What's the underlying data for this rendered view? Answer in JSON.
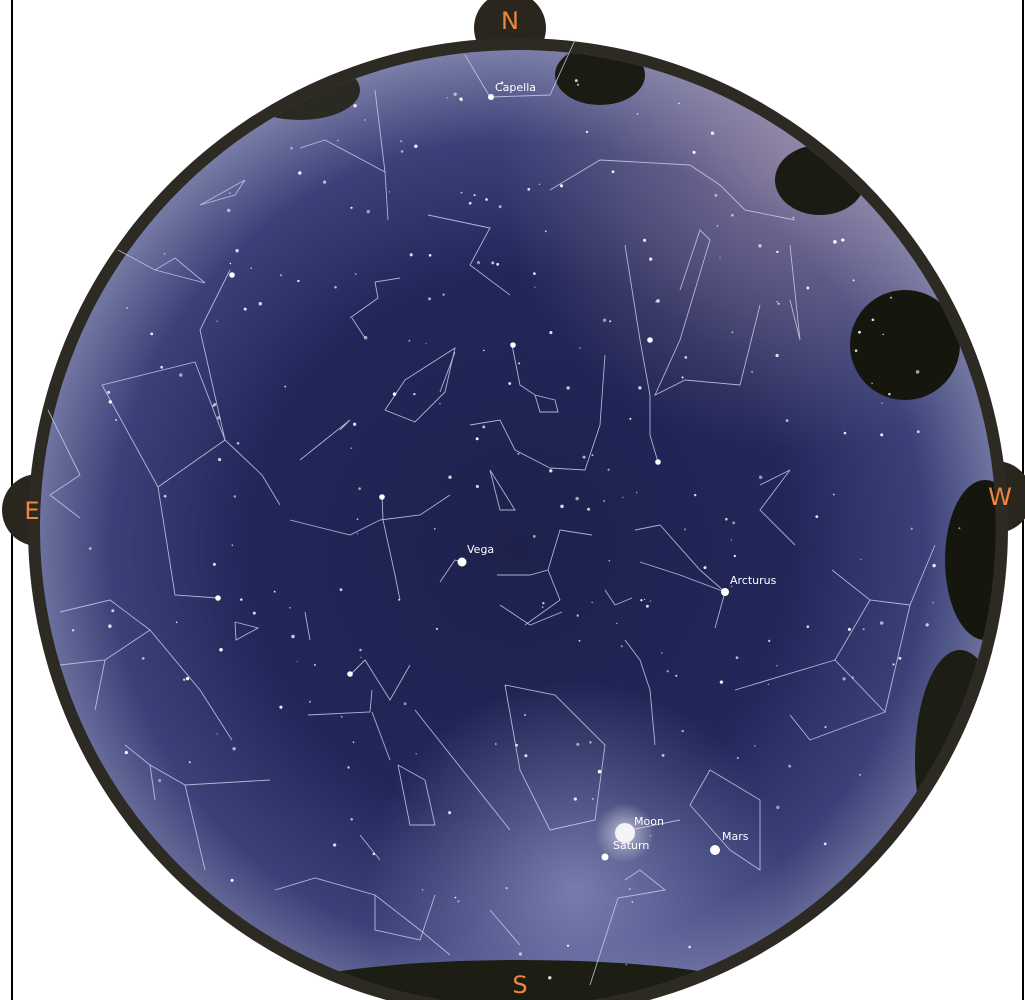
{
  "compass": {
    "north": "N",
    "east": "E",
    "west": "W",
    "south": "S"
  },
  "objects": [
    {
      "label": "Capella"
    },
    {
      "label": "Vega"
    },
    {
      "label": "Arcturus"
    },
    {
      "label": "Moon"
    },
    {
      "label": "Saturn"
    },
    {
      "label": "Mars"
    }
  ]
}
